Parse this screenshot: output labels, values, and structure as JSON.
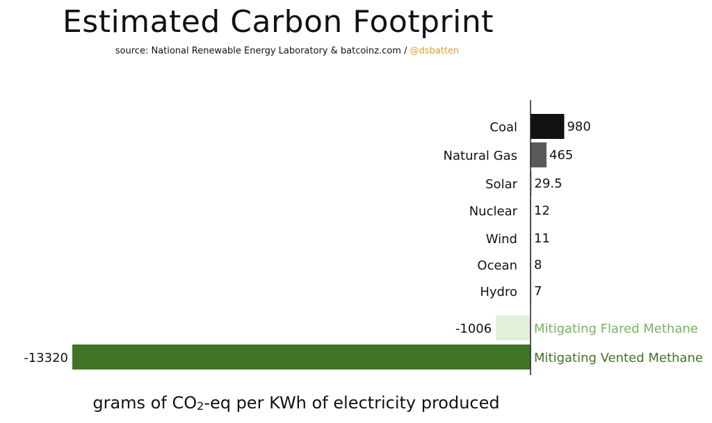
{
  "title": "Estimated Carbon Footprint",
  "subtitle": {
    "source": "source: National Renewable Energy Laboratory & batcoinz.com /",
    "handle": "@dsbatten"
  },
  "chart_data": {
    "type": "bar",
    "orientation": "horizontal",
    "title": "Estimated Carbon Footprint",
    "xlabel_parts": {
      "before": "grams of CO",
      "sub": "2",
      "after": "-eq per KWh of electricity produced"
    },
    "categories": [
      "Coal",
      "Natural Gas",
      "Solar",
      "Nuclear",
      "Wind",
      "Ocean",
      "Hydro",
      "Mitigating Flared Methane",
      "Mitigating Vented Methane"
    ],
    "values": [
      980,
      465,
      29.5,
      12,
      11,
      8,
      7,
      -1006,
      -13320
    ],
    "value_labels": [
      "980",
      "465",
      "29.5",
      "12",
      "11",
      "8",
      "7",
      "-1006",
      "-13320"
    ],
    "colors": [
      "#111111",
      "#5a5a5a",
      "#9a9a9a",
      "#9a9a9a",
      "#9a9a9a",
      "#9a9a9a",
      "#9a9a9a",
      "#e3f0d9",
      "#3f7424"
    ],
    "label_colors": [
      "#111111",
      "#111111",
      "#111111",
      "#111111",
      "#111111",
      "#111111",
      "#111111",
      "#76b35a",
      "#3f7424"
    ],
    "xlim": [
      -13320,
      980
    ],
    "grid": false,
    "legend": "none"
  }
}
